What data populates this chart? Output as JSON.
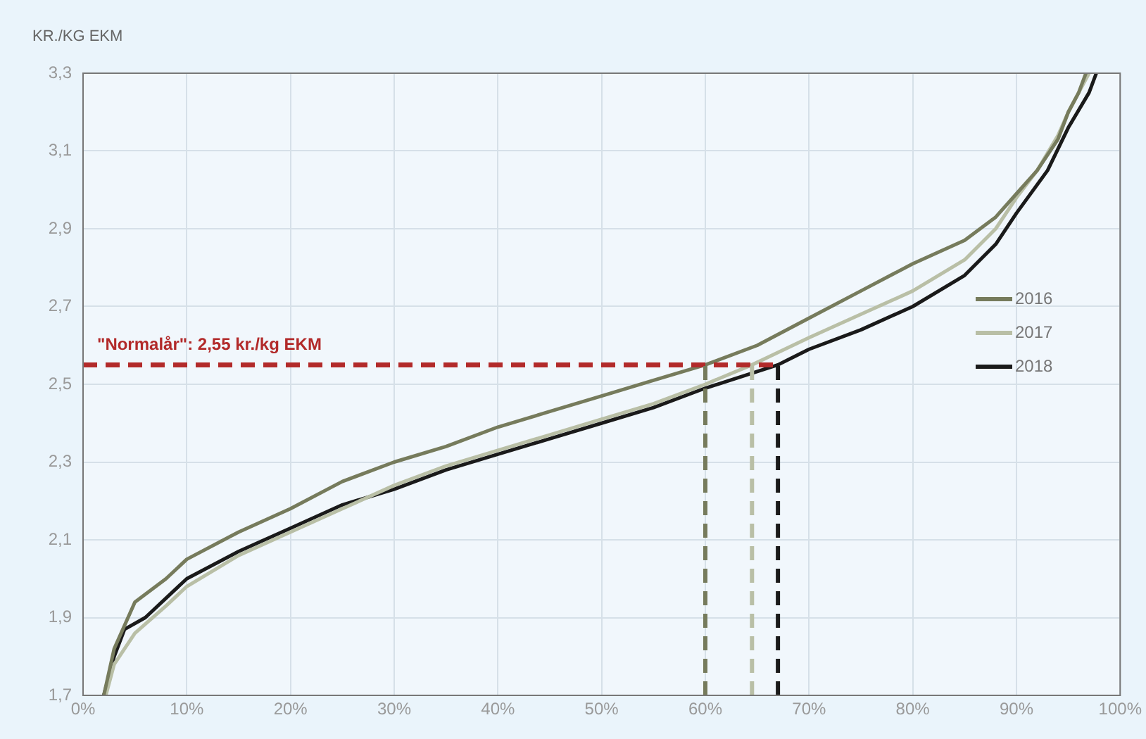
{
  "chart_data": {
    "type": "line",
    "ylabel": "KR./KG EKM",
    "legend": "right",
    "grid": true,
    "marker": "none",
    "line_style": "solid",
    "xlim": [
      0,
      100
    ],
    "ylim": [
      1.7,
      3.3
    ],
    "xticks": [
      {
        "value": 0,
        "label": "0%"
      },
      {
        "value": 10,
        "label": "10%"
      },
      {
        "value": 20,
        "label": "20%"
      },
      {
        "value": 30,
        "label": "30%"
      },
      {
        "value": 40,
        "label": "40%"
      },
      {
        "value": 50,
        "label": "50%"
      },
      {
        "value": 60,
        "label": "60%"
      },
      {
        "value": 70,
        "label": "70%"
      },
      {
        "value": 80,
        "label": "80%"
      },
      {
        "value": 90,
        "label": "90%"
      },
      {
        "value": 100,
        "label": "100%"
      }
    ],
    "yticks": [
      {
        "value": 1.7,
        "label": "1,7"
      },
      {
        "value": 1.9,
        "label": "1,9"
      },
      {
        "value": 2.1,
        "label": "2,1"
      },
      {
        "value": 2.3,
        "label": "2,3"
      },
      {
        "value": 2.5,
        "label": "2,5"
      },
      {
        "value": 2.7,
        "label": "2,7"
      },
      {
        "value": 2.9,
        "label": "2,9"
      },
      {
        "value": 3.1,
        "label": "3,1"
      },
      {
        "value": 3.3,
        "label": "3,3"
      }
    ],
    "series": [
      {
        "name": "2016",
        "color": "#767b5c",
        "x": [
          2,
          3,
          5,
          8,
          10,
          15,
          20,
          25,
          30,
          35,
          40,
          45,
          50,
          55,
          60,
          65,
          70,
          75,
          80,
          85,
          88,
          90,
          92,
          94,
          95,
          96,
          96.7
        ],
        "values": [
          1.7,
          1.82,
          1.94,
          2.0,
          2.05,
          2.12,
          2.18,
          2.25,
          2.3,
          2.34,
          2.39,
          2.43,
          2.47,
          2.51,
          2.55,
          2.6,
          2.67,
          2.74,
          2.81,
          2.87,
          2.93,
          2.99,
          3.05,
          3.13,
          3.2,
          3.25,
          3.3
        ]
      },
      {
        "name": "2017",
        "color": "#b9bfa6",
        "x": [
          2.2,
          3,
          5,
          8,
          10,
          15,
          20,
          25,
          30,
          35,
          40,
          45,
          50,
          55,
          60,
          64.5,
          70,
          75,
          80,
          85,
          88,
          90,
          92,
          94,
          95,
          96,
          97
        ],
        "values": [
          1.7,
          1.78,
          1.86,
          1.93,
          1.98,
          2.06,
          2.12,
          2.18,
          2.24,
          2.29,
          2.33,
          2.37,
          2.41,
          2.45,
          2.5,
          2.55,
          2.62,
          2.68,
          2.74,
          2.82,
          2.9,
          2.98,
          3.05,
          3.14,
          3.2,
          3.25,
          3.3
        ]
      },
      {
        "name": "2018",
        "color": "#1a1a1a",
        "x": [
          2,
          3,
          4,
          6,
          8,
          10,
          15,
          20,
          25,
          30,
          35,
          40,
          45,
          50,
          55,
          60,
          67,
          70,
          75,
          80,
          85,
          88,
          90,
          93,
          95,
          97,
          97.7
        ],
        "values": [
          1.7,
          1.8,
          1.87,
          1.9,
          1.95,
          2.0,
          2.07,
          2.13,
          2.19,
          2.23,
          2.28,
          2.32,
          2.36,
          2.4,
          2.44,
          2.49,
          2.55,
          2.59,
          2.64,
          2.7,
          2.78,
          2.86,
          2.94,
          3.05,
          3.16,
          3.25,
          3.3
        ]
      }
    ],
    "ref_lines": [
      {
        "axis": "y",
        "value": 2.55,
        "label": "\"Normalår\": 2,55 kr./kg EKM",
        "color": "#b22a2a",
        "line_style": "dashed"
      },
      {
        "axis": "x",
        "value": 60,
        "color": "#767b5c",
        "line_style": "dashed"
      },
      {
        "axis": "x",
        "value": 64.5,
        "color": "#b9bfa6",
        "line_style": "dashed"
      },
      {
        "axis": "x",
        "value": 67,
        "color": "#1a1a1a",
        "line_style": "dashed"
      }
    ]
  }
}
